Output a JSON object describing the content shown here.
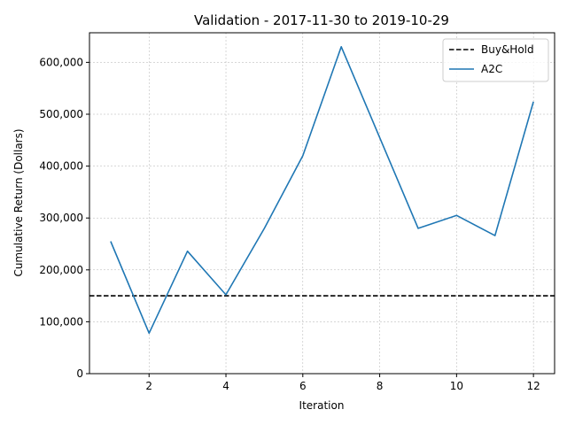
{
  "chart_data": {
    "type": "line",
    "title": "Validation - 2017-11-30 to 2019-10-29",
    "xlabel": "Iteration",
    "ylabel": "Cumulative Return (Dollars)",
    "xlim": [
      0.45,
      12.55
    ],
    "ylim": [
      0,
      657000
    ],
    "x_ticks": [
      2,
      4,
      6,
      8,
      10,
      12
    ],
    "x_tick_labels": [
      "2",
      "4",
      "6",
      "8",
      "10",
      "12"
    ],
    "y_ticks": [
      0,
      100000,
      200000,
      300000,
      400000,
      500000,
      600000
    ],
    "y_tick_labels": [
      "0",
      "100,000",
      "200,000",
      "300,000",
      "400,000",
      "500,000",
      "600,000"
    ],
    "grid": true,
    "legend_position": "top-right",
    "series": [
      {
        "name": "Buy&Hold",
        "style": "dashed",
        "color": "#000000",
        "kind": "hline",
        "y": 150000
      },
      {
        "name": "A2C",
        "style": "solid",
        "color": "#1f77b4",
        "x": [
          1,
          2,
          3,
          4,
          5,
          6,
          7,
          8,
          9,
          10,
          11,
          12
        ],
        "y": [
          255000,
          78000,
          236000,
          152000,
          280000,
          420000,
          630000,
          455000,
          280000,
          305000,
          266000,
          524000
        ]
      }
    ]
  }
}
